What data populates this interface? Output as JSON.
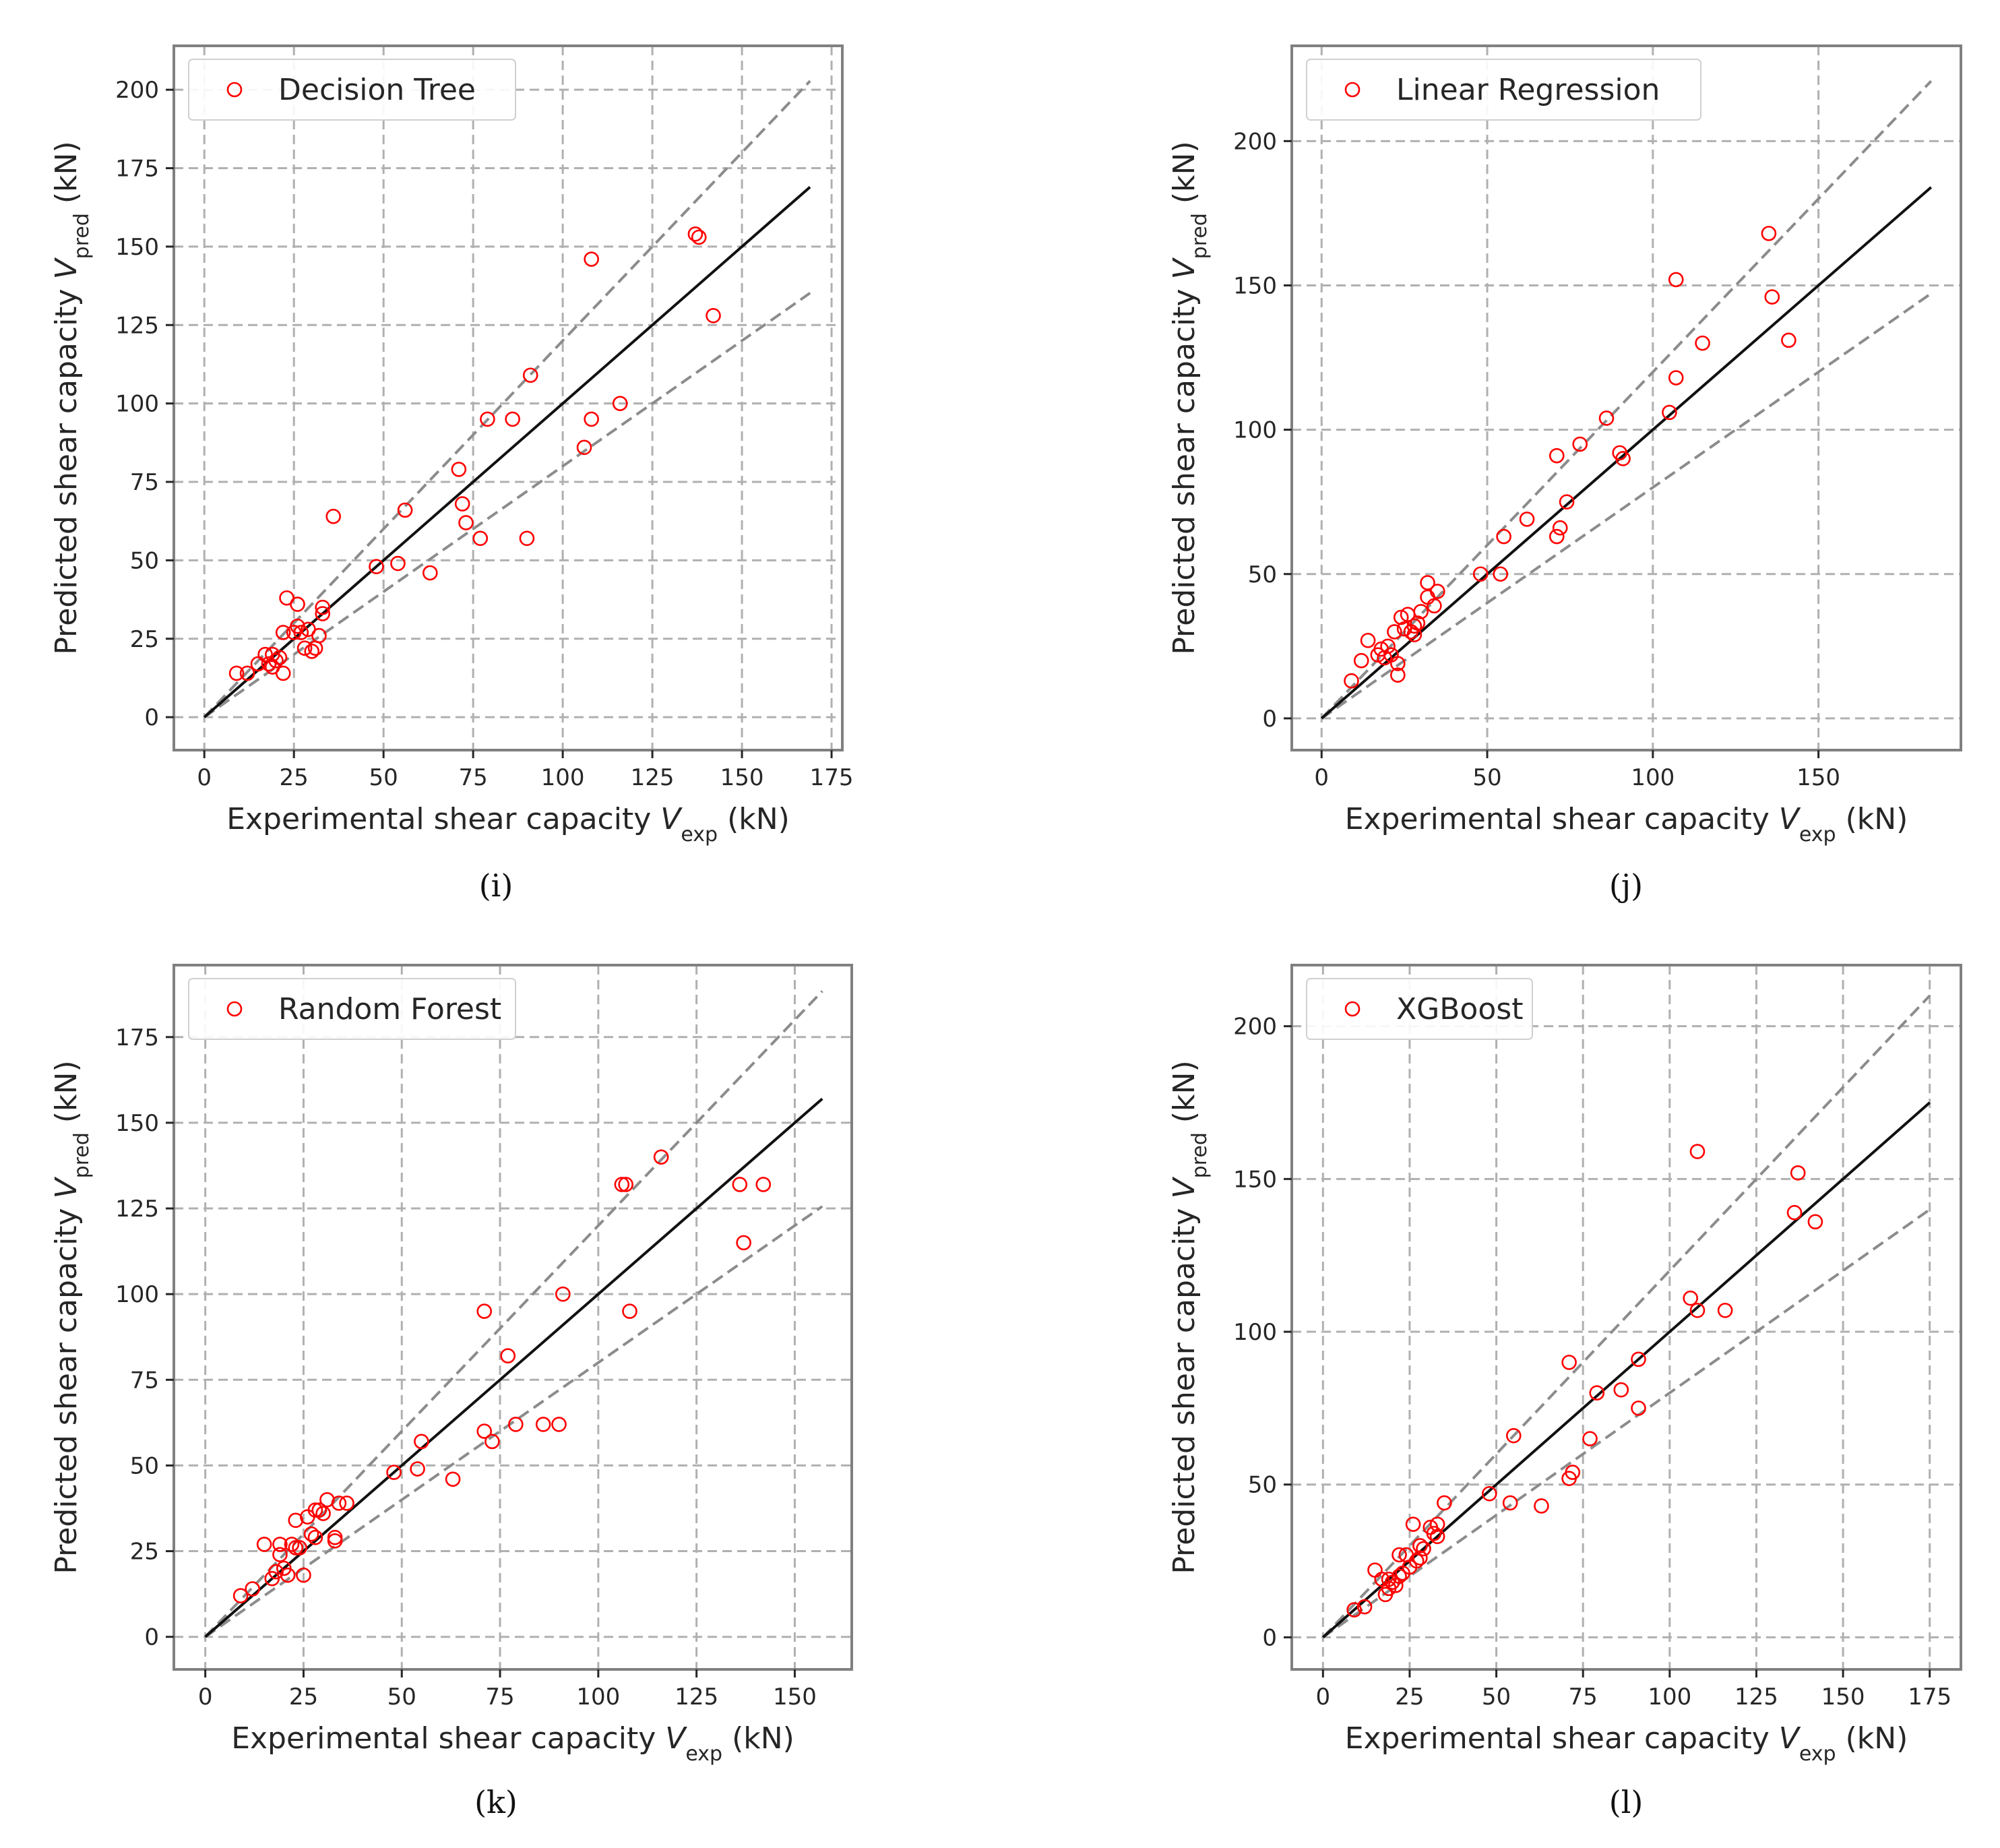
{
  "chart_data": [
    {
      "id": "i",
      "type": "scatter",
      "caption": "(i)",
      "legend": "Decision Tree",
      "xlabel_main": "Experimental shear capacity ",
      "xlabel_var": "V",
      "xlabel_sub": "exp",
      "xlabel_unit": " (kN)",
      "ylabel_main": "Predicted shear capacity ",
      "ylabel_var": "V",
      "ylabel_sub": "pred",
      "ylabel_unit": " (kN)",
      "xlim": [
        -8.5,
        178
      ],
      "ylim": [
        -10.5,
        214
      ],
      "xticks": [
        0,
        25,
        50,
        75,
        100,
        125,
        150,
        175
      ],
      "yticks": [
        0,
        25,
        50,
        75,
        100,
        125,
        150,
        175,
        200
      ],
      "line_max": 169,
      "bound_factors": [
        1.2,
        0.8
      ],
      "points": [
        [
          9,
          14
        ],
        [
          12,
          14
        ],
        [
          15,
          17
        ],
        [
          17,
          20
        ],
        [
          18,
          17
        ],
        [
          19,
          20
        ],
        [
          19,
          16
        ],
        [
          20,
          18
        ],
        [
          21,
          19
        ],
        [
          22,
          14
        ],
        [
          22,
          27
        ],
        [
          23,
          38
        ],
        [
          25,
          27
        ],
        [
          26,
          36
        ],
        [
          26,
          29
        ],
        [
          27,
          27
        ],
        [
          28,
          22
        ],
        [
          29,
          28
        ],
        [
          30,
          21
        ],
        [
          31,
          22
        ],
        [
          32,
          26
        ],
        [
          33,
          35
        ],
        [
          33,
          33
        ],
        [
          36,
          64
        ],
        [
          48,
          48
        ],
        [
          54,
          49
        ],
        [
          56,
          66
        ],
        [
          63,
          46
        ],
        [
          71,
          79
        ],
        [
          72,
          68
        ],
        [
          73,
          62
        ],
        [
          77,
          57
        ],
        [
          79,
          95
        ],
        [
          86,
          95
        ],
        [
          90,
          57
        ],
        [
          91,
          109
        ],
        [
          106,
          86
        ],
        [
          108,
          146
        ],
        [
          108,
          95
        ],
        [
          116,
          100
        ],
        [
          137,
          154
        ],
        [
          138,
          153
        ],
        [
          142,
          128
        ]
      ]
    },
    {
      "id": "j",
      "type": "scatter",
      "caption": "(j)",
      "legend": "Linear Regression",
      "xlabel_main": "Experimental shear capacity ",
      "xlabel_var": "V",
      "xlabel_sub": "exp",
      "xlabel_unit": " (kN)",
      "ylabel_main": "Predicted shear capacity ",
      "ylabel_var": "V",
      "ylabel_sub": "pred",
      "ylabel_unit": " (kN)",
      "xlim": [
        -9,
        193
      ],
      "ylim": [
        -11,
        233
      ],
      "xticks": [
        0,
        50,
        100,
        150
      ],
      "yticks": [
        0,
        50,
        100,
        150,
        200
      ],
      "line_max": 184,
      "bound_factors": [
        1.2,
        0.8
      ],
      "points": [
        [
          9,
          13
        ],
        [
          12,
          20
        ],
        [
          14,
          27
        ],
        [
          17,
          22
        ],
        [
          18,
          24
        ],
        [
          19,
          21
        ],
        [
          20,
          25
        ],
        [
          21,
          22
        ],
        [
          22,
          30
        ],
        [
          23,
          19
        ],
        [
          23,
          15
        ],
        [
          24,
          35
        ],
        [
          25,
          31
        ],
        [
          26,
          36
        ],
        [
          27,
          30
        ],
        [
          28,
          29
        ],
        [
          28,
          32
        ],
        [
          29,
          33
        ],
        [
          30,
          37
        ],
        [
          32,
          42
        ],
        [
          32,
          47
        ],
        [
          34,
          39
        ],
        [
          35,
          44
        ],
        [
          48,
          50
        ],
        [
          54,
          50
        ],
        [
          55,
          63
        ],
        [
          62,
          69
        ],
        [
          71,
          63
        ],
        [
          72,
          66
        ],
        [
          71,
          91
        ],
        [
          74,
          75
        ],
        [
          78,
          95
        ],
        [
          86,
          104
        ],
        [
          90,
          92
        ],
        [
          91,
          90
        ],
        [
          105,
          106
        ],
        [
          107,
          152
        ],
        [
          107,
          118
        ],
        [
          115,
          130
        ],
        [
          135,
          168
        ],
        [
          136,
          146
        ],
        [
          141,
          131
        ]
      ]
    },
    {
      "id": "k",
      "type": "scatter",
      "caption": "(k)",
      "legend": "Random Forest",
      "xlabel_main": "Experimental shear capacity ",
      "xlabel_var": "V",
      "xlabel_sub": "exp",
      "xlabel_unit": " (kN)",
      "ylabel_main": "Predicted shear capacity ",
      "ylabel_var": "V",
      "ylabel_sub": "pred",
      "ylabel_unit": " (kN)",
      "xlim": [
        -8,
        164.5
      ],
      "ylim": [
        -9.5,
        196
      ],
      "xticks": [
        0,
        25,
        50,
        75,
        100,
        125,
        150
      ],
      "yticks": [
        0,
        25,
        50,
        75,
        100,
        125,
        150,
        175
      ],
      "line_max": 157,
      "bound_factors": [
        1.2,
        0.8
      ],
      "points": [
        [
          9,
          12
        ],
        [
          12,
          14
        ],
        [
          15,
          27
        ],
        [
          17,
          17
        ],
        [
          18,
          19
        ],
        [
          19,
          24
        ],
        [
          19,
          27
        ],
        [
          20,
          20
        ],
        [
          21,
          18
        ],
        [
          22,
          27
        ],
        [
          23,
          34
        ],
        [
          23,
          26
        ],
        [
          24,
          26
        ],
        [
          25,
          18
        ],
        [
          26,
          35
        ],
        [
          27,
          30
        ],
        [
          28,
          29
        ],
        [
          28,
          37
        ],
        [
          29,
          37
        ],
        [
          30,
          36
        ],
        [
          31,
          40
        ],
        [
          33,
          29
        ],
        [
          33,
          28
        ],
        [
          34,
          39
        ],
        [
          36,
          39
        ],
        [
          48,
          48
        ],
        [
          54,
          49
        ],
        [
          55,
          57
        ],
        [
          63,
          46
        ],
        [
          71,
          60
        ],
        [
          71,
          95
        ],
        [
          73,
          57
        ],
        [
          77,
          82
        ],
        [
          79,
          62
        ],
        [
          86,
          62
        ],
        [
          90,
          62
        ],
        [
          91,
          100
        ],
        [
          106,
          132
        ],
        [
          107,
          132
        ],
        [
          108,
          95
        ],
        [
          116,
          140
        ],
        [
          136,
          132
        ],
        [
          137,
          115
        ],
        [
          142,
          132
        ]
      ]
    },
    {
      "id": "l",
      "type": "scatter",
      "caption": "(l)",
      "legend": "XGBoost",
      "xlabel_main": "Experimental shear capacity ",
      "xlabel_var": "V",
      "xlabel_sub": "exp",
      "xlabel_unit": " (kN)",
      "ylabel_main": "Predicted shear capacity ",
      "ylabel_var": "V",
      "ylabel_sub": "pred",
      "ylabel_unit": " (kN)",
      "xlim": [
        -9,
        184
      ],
      "ylim": [
        -10.5,
        220
      ],
      "xticks": [
        0,
        25,
        50,
        75,
        100,
        125,
        150,
        175
      ],
      "yticks": [
        0,
        50,
        100,
        150,
        200
      ],
      "line_max": 175,
      "bound_factors": [
        1.2,
        0.8
      ],
      "points": [
        [
          9,
          9
        ],
        [
          12,
          10
        ],
        [
          15,
          22
        ],
        [
          17,
          19
        ],
        [
          18,
          14
        ],
        [
          19,
          16
        ],
        [
          19,
          19
        ],
        [
          20,
          18
        ],
        [
          21,
          17
        ],
        [
          22,
          27
        ],
        [
          22,
          20
        ],
        [
          23,
          21
        ],
        [
          24,
          27
        ],
        [
          25,
          23
        ],
        [
          26,
          37
        ],
        [
          27,
          25
        ],
        [
          28,
          30
        ],
        [
          28,
          26
        ],
        [
          29,
          29
        ],
        [
          31,
          36
        ],
        [
          32,
          34
        ],
        [
          33,
          37
        ],
        [
          33,
          33
        ],
        [
          35,
          44
        ],
        [
          48,
          47
        ],
        [
          54,
          44
        ],
        [
          55,
          66
        ],
        [
          63,
          43
        ],
        [
          71,
          52
        ],
        [
          72,
          54
        ],
        [
          71,
          90
        ],
        [
          77,
          65
        ],
        [
          79,
          80
        ],
        [
          86,
          81
        ],
        [
          91,
          75
        ],
        [
          91,
          91
        ],
        [
          106,
          111
        ],
        [
          108,
          159
        ],
        [
          108,
          107
        ],
        [
          116,
          107
        ],
        [
          136,
          139
        ],
        [
          137,
          152
        ],
        [
          142,
          136
        ]
      ]
    }
  ]
}
